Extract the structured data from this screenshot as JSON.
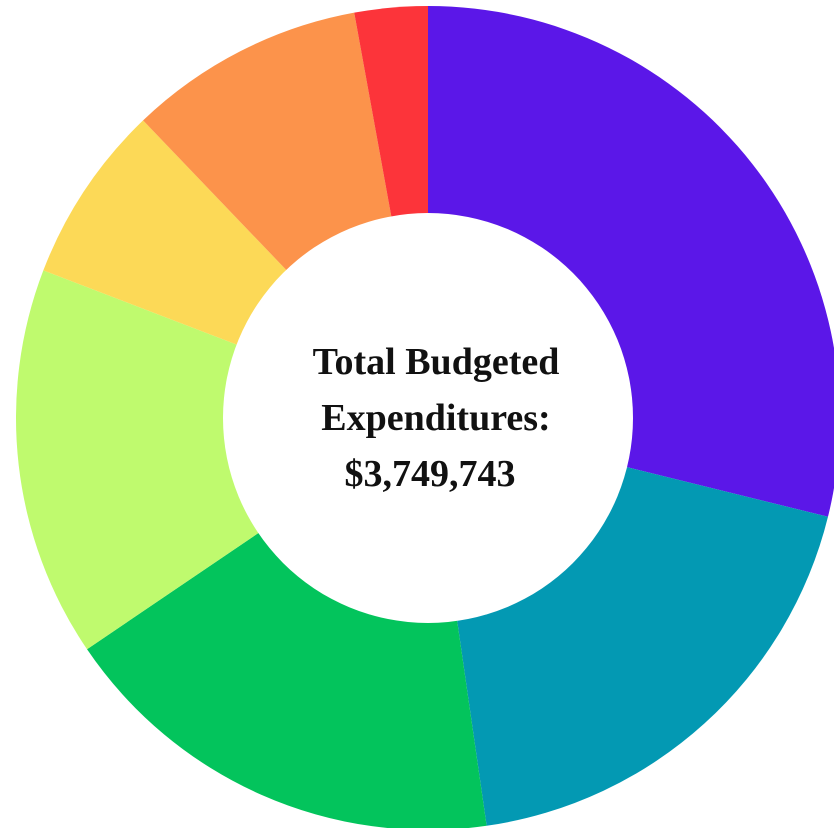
{
  "chart_data": {
    "type": "pie",
    "donut": true,
    "title": "",
    "center_text": {
      "line1": "Total Budgeted",
      "line2": "Expenditures:",
      "line3": "$3,749,743"
    },
    "slices": [
      {
        "value": 29.2,
        "color": "#5B17E8"
      },
      {
        "value": 19.1,
        "color": "#0399B3"
      },
      {
        "value": 18.0,
        "color": "#03C45C"
      },
      {
        "value": 15.5,
        "color": "#BFFA6E"
      },
      {
        "value": 7.1,
        "color": "#FCD957"
      },
      {
        "value": 9.4,
        "color": "#FC934B"
      },
      {
        "value": 2.9,
        "color": "#FC343A"
      }
    ]
  }
}
